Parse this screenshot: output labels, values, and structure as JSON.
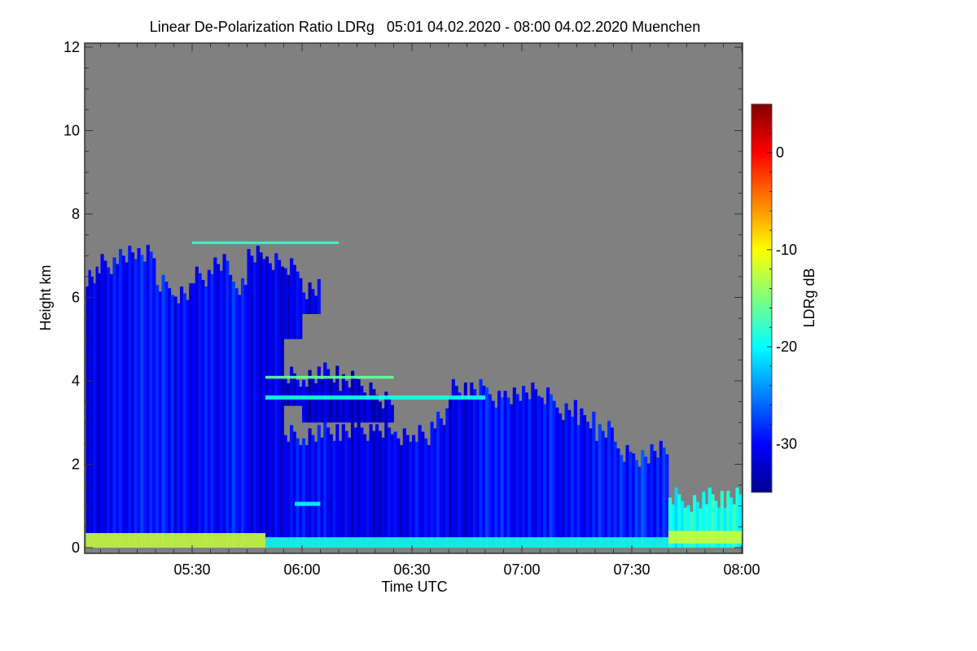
{
  "chart_data": {
    "type": "heatmap",
    "title": "Linear De-Polarization Ratio LDRg   05:01 04.02.2020 - 08:00 04.02.2020 Muenchen",
    "xlabel": "Time UTC",
    "ylabel": "Height km",
    "colorbar_label": "LDRg dB",
    "xlim": [
      "05:01",
      "08:00"
    ],
    "ylim": [
      0,
      12
    ],
    "x_ticks": [
      "05:30",
      "06:00",
      "06:30",
      "07:00",
      "07:30",
      "08:00"
    ],
    "y_ticks": [
      "0",
      "2",
      "4",
      "6",
      "8",
      "10",
      "12"
    ],
    "colorbar_range": [
      -35,
      5
    ],
    "colorbar_ticks": [
      "0",
      "-10",
      "-20",
      "-30"
    ],
    "colormap": "jet",
    "no_data_color": "#808080",
    "columns": [
      {
        "t": "05:01",
        "segments": [
          [
            0,
            6.5,
            -31
          ]
        ]
      },
      {
        "t": "05:05",
        "segments": [
          [
            0,
            6.8,
            -30
          ]
        ]
      },
      {
        "t": "05:10",
        "segments": [
          [
            0,
            7.0,
            -30
          ]
        ]
      },
      {
        "t": "05:15",
        "segments": [
          [
            0,
            7.1,
            -29
          ]
        ]
      },
      {
        "t": "05:20",
        "segments": [
          [
            0,
            6.3,
            -29
          ]
        ]
      },
      {
        "t": "05:25",
        "segments": [
          [
            0,
            6.1,
            -30
          ]
        ]
      },
      {
        "t": "05:30",
        "segments": [
          [
            0,
            6.5,
            -30
          ]
        ]
      },
      {
        "t": "05:35",
        "segments": [
          [
            0,
            6.8,
            -30
          ]
        ]
      },
      {
        "t": "05:40",
        "segments": [
          [
            0,
            6.3,
            -29
          ]
        ]
      },
      {
        "t": "05:45",
        "segments": [
          [
            0,
            7.0,
            -31
          ]
        ]
      },
      {
        "t": "05:50",
        "segments": [
          [
            0,
            6.9,
            -31
          ]
        ]
      },
      {
        "t": "05:55",
        "segments": [
          [
            0,
            2.7,
            -30
          ],
          [
            3.4,
            4.1,
            -32
          ],
          [
            5.0,
            6.7,
            -31
          ]
        ]
      },
      {
        "t": "06:00",
        "segments": [
          [
            0,
            2.7,
            -30
          ],
          [
            3.0,
            4.1,
            -32
          ],
          [
            5.6,
            6.2,
            -31
          ]
        ]
      },
      {
        "t": "06:05",
        "segments": [
          [
            0,
            2.8,
            -30
          ],
          [
            3.0,
            4.2,
            -32
          ]
        ]
      },
      {
        "t": "06:10",
        "segments": [
          [
            0,
            2.8,
            -31
          ],
          [
            3.0,
            4.0,
            -32
          ]
        ]
      },
      {
        "t": "06:15",
        "segments": [
          [
            0,
            2.8,
            -31
          ],
          [
            3.0,
            3.8,
            -32
          ]
        ]
      },
      {
        "t": "06:20",
        "segments": [
          [
            0,
            2.8,
            -31
          ],
          [
            3.0,
            3.5,
            -32
          ]
        ]
      },
      {
        "t": "06:25",
        "segments": [
          [
            0,
            2.7,
            -31
          ]
        ]
      },
      {
        "t": "06:30",
        "segments": [
          [
            0,
            2.7,
            -30
          ]
        ]
      },
      {
        "t": "06:35",
        "segments": [
          [
            0,
            3.1,
            -30
          ]
        ]
      },
      {
        "t": "06:40",
        "segments": [
          [
            0,
            3.8,
            -31
          ]
        ]
      },
      {
        "t": "06:45",
        "segments": [
          [
            0,
            3.8,
            -30
          ]
        ]
      },
      {
        "t": "06:50",
        "segments": [
          [
            0,
            3.6,
            -29
          ]
        ]
      },
      {
        "t": "06:55",
        "segments": [
          [
            0,
            3.6,
            -30
          ]
        ]
      },
      {
        "t": "07:00",
        "segments": [
          [
            0,
            3.8,
            -30
          ]
        ]
      },
      {
        "t": "07:05",
        "segments": [
          [
            0,
            3.6,
            -29
          ]
        ]
      },
      {
        "t": "07:10",
        "segments": [
          [
            0,
            3.3,
            -30
          ]
        ]
      },
      {
        "t": "07:15",
        "segments": [
          [
            0,
            3.1,
            -30
          ]
        ]
      },
      {
        "t": "07:20",
        "segments": [
          [
            0,
            2.8,
            -29
          ]
        ]
      },
      {
        "t": "07:25",
        "segments": [
          [
            0,
            2.3,
            -29
          ]
        ]
      },
      {
        "t": "07:30",
        "segments": [
          [
            0,
            2.1,
            -28
          ]
        ]
      },
      {
        "t": "07:35",
        "segments": [
          [
            0,
            2.4,
            -29
          ]
        ]
      },
      {
        "t": "07:40",
        "segments": [
          [
            0,
            1.2,
            -20
          ]
        ]
      },
      {
        "t": "07:45",
        "segments": [
          [
            0,
            1.1,
            -19
          ]
        ]
      },
      {
        "t": "07:50",
        "segments": [
          [
            0,
            1.2,
            -19
          ]
        ]
      },
      {
        "t": "07:55",
        "segments": [
          [
            0,
            1.2,
            -19
          ]
        ]
      }
    ],
    "layers": [
      {
        "start": "05:01",
        "end": "05:50",
        "bottom": 0.0,
        "top": 0.35,
        "ldr": -12
      },
      {
        "start": "05:50",
        "end": "07:40",
        "bottom": 0.0,
        "top": 0.25,
        "ldr": -19
      },
      {
        "start": "07:40",
        "end": "08:00",
        "bottom": 0.1,
        "top": 0.4,
        "ldr": -12
      },
      {
        "start": "05:30",
        "end": "06:10",
        "bottom": 7.28,
        "top": 7.34,
        "ldr": -18
      },
      {
        "start": "05:50",
        "end": "06:25",
        "bottom": 4.05,
        "top": 4.12,
        "ldr": -16
      },
      {
        "start": "05:50",
        "end": "06:50",
        "bottom": 3.55,
        "top": 3.65,
        "ldr": -19
      },
      {
        "start": "05:58",
        "end": "06:05",
        "bottom": 1.0,
        "top": 1.1,
        "ldr": -20
      }
    ]
  }
}
